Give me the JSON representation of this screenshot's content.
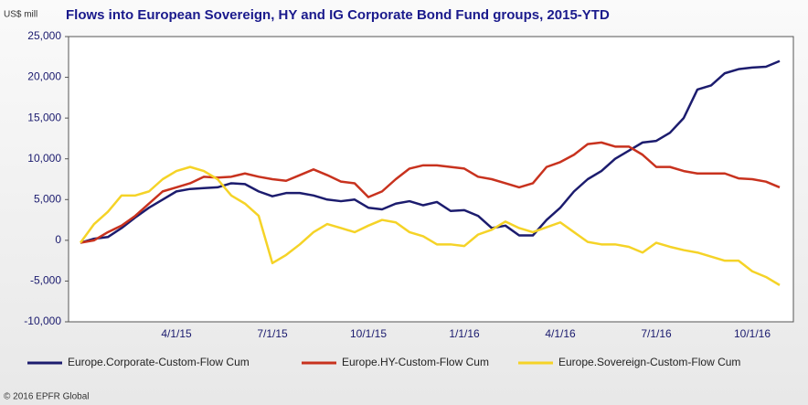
{
  "chart_data": {
    "type": "line",
    "title": "Flows into European Sovereign, HY and IG Corporate Bond Fund groups, 2015-YTD",
    "y_label": "US$ mill",
    "source": "© 2016 EPFR Global",
    "categories": [
      null,
      null,
      null,
      null,
      null,
      null,
      null,
      "4/1/15",
      null,
      null,
      null,
      null,
      null,
      null,
      "7/1/15",
      null,
      null,
      null,
      null,
      null,
      null,
      "10/1/15",
      null,
      null,
      null,
      null,
      null,
      null,
      "1/1/16",
      null,
      null,
      null,
      null,
      null,
      null,
      "4/1/16",
      null,
      null,
      null,
      null,
      null,
      null,
      "7/1/16",
      null,
      null,
      null,
      null,
      null,
      null,
      "10/1/16",
      null,
      null
    ],
    "series": [
      {
        "name": "Europe.Corporate-Custom-Flow Cum",
        "color": "#1c1c6e",
        "values": [
          -300,
          200,
          400,
          1500,
          2800,
          4000,
          5000,
          6000,
          6300,
          6400,
          6500,
          7000,
          6900,
          6000,
          5400,
          5800,
          5800,
          5500,
          5000,
          4800,
          5000,
          4000,
          3800,
          4500,
          4800,
          4300,
          4700,
          3600,
          3700,
          3000,
          1500,
          1800,
          600,
          600,
          2500,
          4000,
          6000,
          7500,
          8500,
          10000,
          11000,
          12000,
          12200,
          13200,
          15000,
          18500,
          19000,
          20500,
          21000,
          21200,
          21300,
          22000
        ]
      },
      {
        "name": "Europe.HY-Custom-Flow Cum",
        "color": "#c8321e",
        "values": [
          -300,
          0,
          1000,
          1800,
          3000,
          4500,
          6000,
          6500,
          7000,
          7800,
          7700,
          7800,
          8200,
          7800,
          7500,
          7300,
          8000,
          8700,
          8000,
          7200,
          7000,
          5300,
          6000,
          7500,
          8800,
          9200,
          9200,
          9000,
          8800,
          7800,
          7500,
          7000,
          6500,
          7000,
          9000,
          9600,
          10500,
          11800,
          12000,
          11500,
          11500,
          10500,
          9000,
          9000,
          8500,
          8200,
          8200,
          8200,
          7600,
          7500,
          7200,
          6500
        ]
      },
      {
        "name": "Europe.Sovereign-Custom-Flow Cum",
        "color": "#f5d327",
        "values": [
          -300,
          2000,
          3500,
          5500,
          5500,
          6000,
          7500,
          8500,
          9000,
          8500,
          7500,
          5500,
          4500,
          3000,
          -2800,
          -1800,
          -500,
          1000,
          2000,
          1500,
          1000,
          1800,
          2500,
          2200,
          1000,
          500,
          -500,
          -500,
          -700,
          700,
          1300,
          2300,
          1500,
          1000,
          1600,
          2200,
          1000,
          -200,
          -500,
          -500,
          -800,
          -1500,
          -300,
          -800,
          -1200,
          -1500,
          -2000,
          -2500,
          -2500,
          -3800,
          -4500,
          -5500
        ]
      }
    ],
    "ylim": [
      -10000,
      25000
    ],
    "yticks": [
      {
        "value": -10000,
        "label": "-10,000"
      },
      {
        "value": -5000,
        "label": "-5,000"
      },
      0,
      {
        "value": 5000,
        "label": "5,000"
      },
      {
        "value": 10000,
        "label": "10,000"
      },
      {
        "value": 15000,
        "label": "15,000"
      },
      {
        "value": 20000,
        "label": "20,000"
      },
      {
        "value": 25000,
        "label": "25,000"
      }
    ],
    "grid": false
  }
}
